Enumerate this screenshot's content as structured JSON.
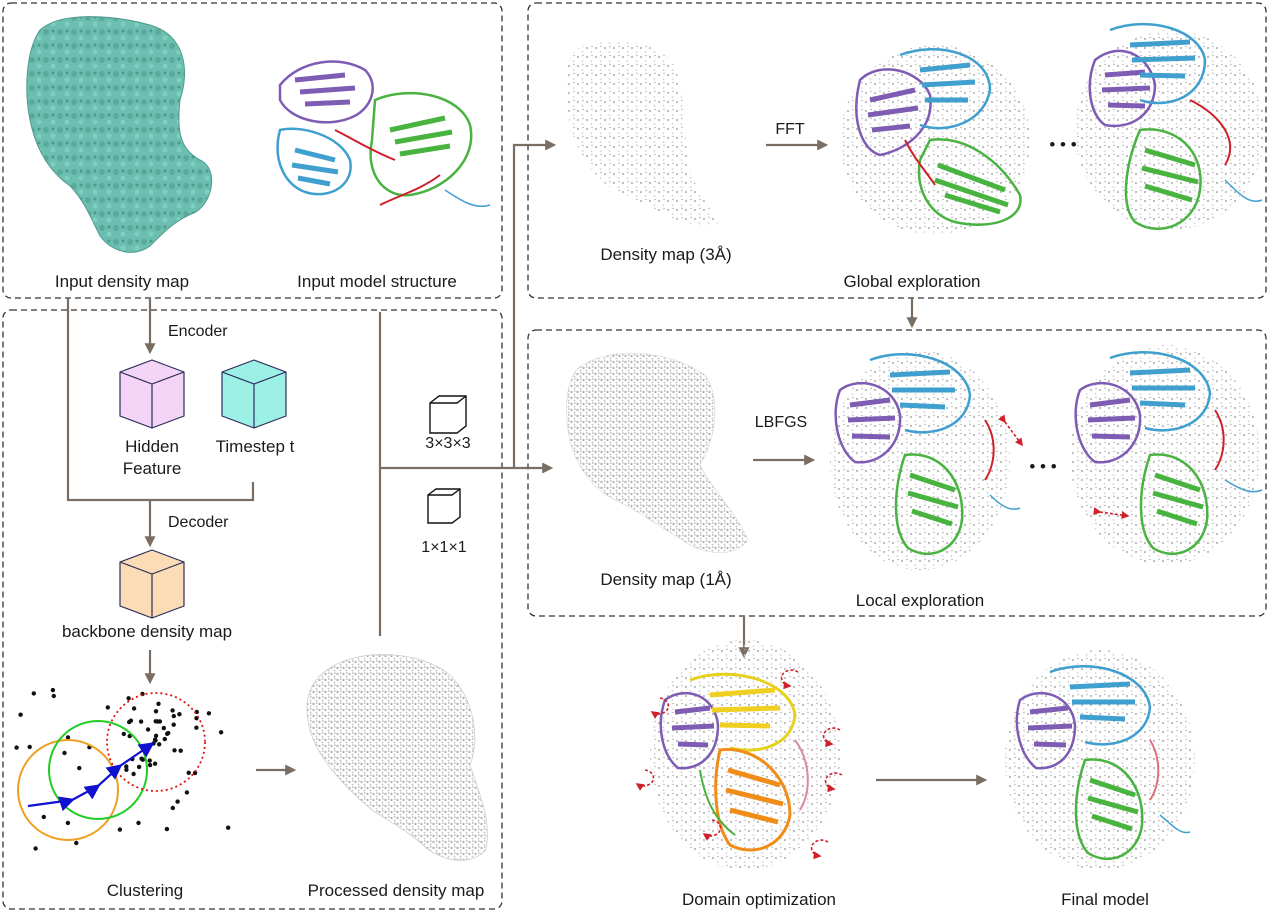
{
  "panels": {
    "input": {
      "density_label": "Input density map",
      "model_label": "Input model structure"
    },
    "pipeline": {
      "encoder_label": "Encoder",
      "hidden_feature_label_1": "Hidden",
      "hidden_feature_label_2": "Feature",
      "timestep_label": "Timestep t",
      "decoder_label": "Decoder",
      "backbone_label": "backbone density map",
      "clustering_label": "Clustering",
      "processed_label": "Processed density map"
    },
    "kernels": {
      "large_label": "3×3×3",
      "small_label": "1×1×1"
    },
    "global": {
      "density_label": "Density map (3Å)",
      "method_label": "FFT",
      "ellipsis": "• • •",
      "title": "Global exploration"
    },
    "local": {
      "density_label": "Density map (1Å)",
      "method_label": "LBFGS",
      "ellipsis": "• • •",
      "title": "Local exploration"
    },
    "final": {
      "domain_label": "Domain optimization",
      "final_label": "Final model"
    }
  },
  "colors": {
    "density_teal": "#6cbfb0",
    "hidden_cube": "#f4d4f6",
    "timestep_cube": "#9df0e6",
    "backbone_cube": "#fbdcb6",
    "purple_domain": "#7e5cb4",
    "blue_domain": "#3f9fcf",
    "green_domain": "#49b340",
    "red_linker": "#d0202a",
    "arrow": "#7a6e63"
  }
}
